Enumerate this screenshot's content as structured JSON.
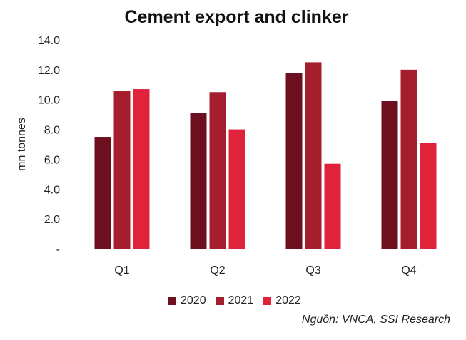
{
  "chart_data": {
    "type": "bar",
    "title": "Cement export and clinker",
    "ylabel": "mn tonnes",
    "xlabel": "",
    "categories": [
      "Q1",
      "Q2",
      "Q3",
      "Q4"
    ],
    "series": [
      {
        "name": "2020",
        "values": [
          7.5,
          9.1,
          11.8,
          9.9
        ],
        "color": "#6e0f1f"
      },
      {
        "name": "2021",
        "values": [
          10.6,
          10.5,
          12.5,
          12.0
        ],
        "color": "#a51e2d"
      },
      {
        "name": "2022",
        "values": [
          10.7,
          8.0,
          5.7,
          7.1
        ],
        "color": "#e0223a"
      }
    ],
    "ylim": [
      0,
      14
    ],
    "yticks": [
      0,
      2,
      4,
      6,
      8,
      10,
      12,
      14
    ],
    "ytick_labels": [
      "-",
      "2.0",
      "4.0",
      "6.0",
      "8.0",
      "10.0",
      "12.0",
      "14.0"
    ],
    "grid": false,
    "legend_position": "bottom"
  },
  "source_note": "Nguồn: VNCA, SSI Research"
}
